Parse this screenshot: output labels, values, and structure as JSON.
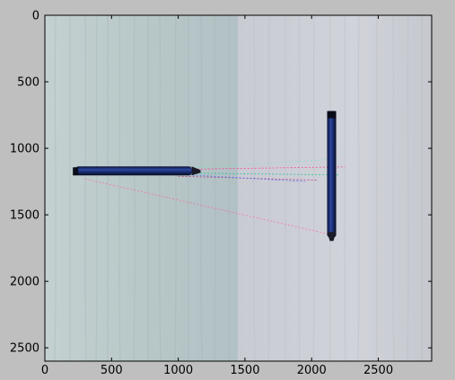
{
  "figure": {
    "background": "#bfbfbf",
    "axes_frame_color": "#000000"
  },
  "image_panel": {
    "description_colors": {
      "left_board": "#b9c8c8",
      "right_board": "#cfd1d8",
      "pen_body": "#1b2f6e",
      "pen_dark": "#0d1230"
    },
    "left_pen": {
      "x_range": [
        230,
        1100
      ],
      "y_center": 1170
    },
    "right_pen": {
      "x_center": 2150,
      "y_range": [
        720,
        1670
      ]
    },
    "match_lines": [
      {
        "from": [
          900,
          1160
        ],
        "to": [
          2250,
          1140
        ],
        "color": "#ff2a8a"
      },
      {
        "from": [
          950,
          1185
        ],
        "to": [
          2200,
          1200
        ],
        "color": "#00c080"
      },
      {
        "from": [
          1000,
          1210
        ],
        "to": [
          2050,
          1240
        ],
        "color": "#b02070"
      },
      {
        "from": [
          300,
          1230
        ],
        "to": [
          2150,
          1650
        ],
        "color": "#ff60a0"
      },
      {
        "from": [
          1050,
          1150
        ],
        "to": [
          2200,
          1080
        ],
        "color": "#80e0c0"
      },
      {
        "from": [
          1080,
          1200
        ],
        "to": [
          1950,
          1250
        ],
        "color": "#4060ff"
      }
    ]
  },
  "chart_data": {
    "type": "image",
    "xlim": [
      0,
      2900
    ],
    "ylim": [
      2600,
      0
    ],
    "x_ticks": [
      0,
      500,
      1000,
      1500,
      2000,
      2500
    ],
    "y_ticks": [
      0,
      500,
      1000,
      1500,
      2000,
      2500
    ],
    "x_tick_labels": [
      "0",
      "500",
      "1000",
      "1500",
      "2000",
      "2500"
    ],
    "y_tick_labels": [
      "0",
      "500",
      "1000",
      "1500",
      "2000",
      "2500"
    ]
  }
}
